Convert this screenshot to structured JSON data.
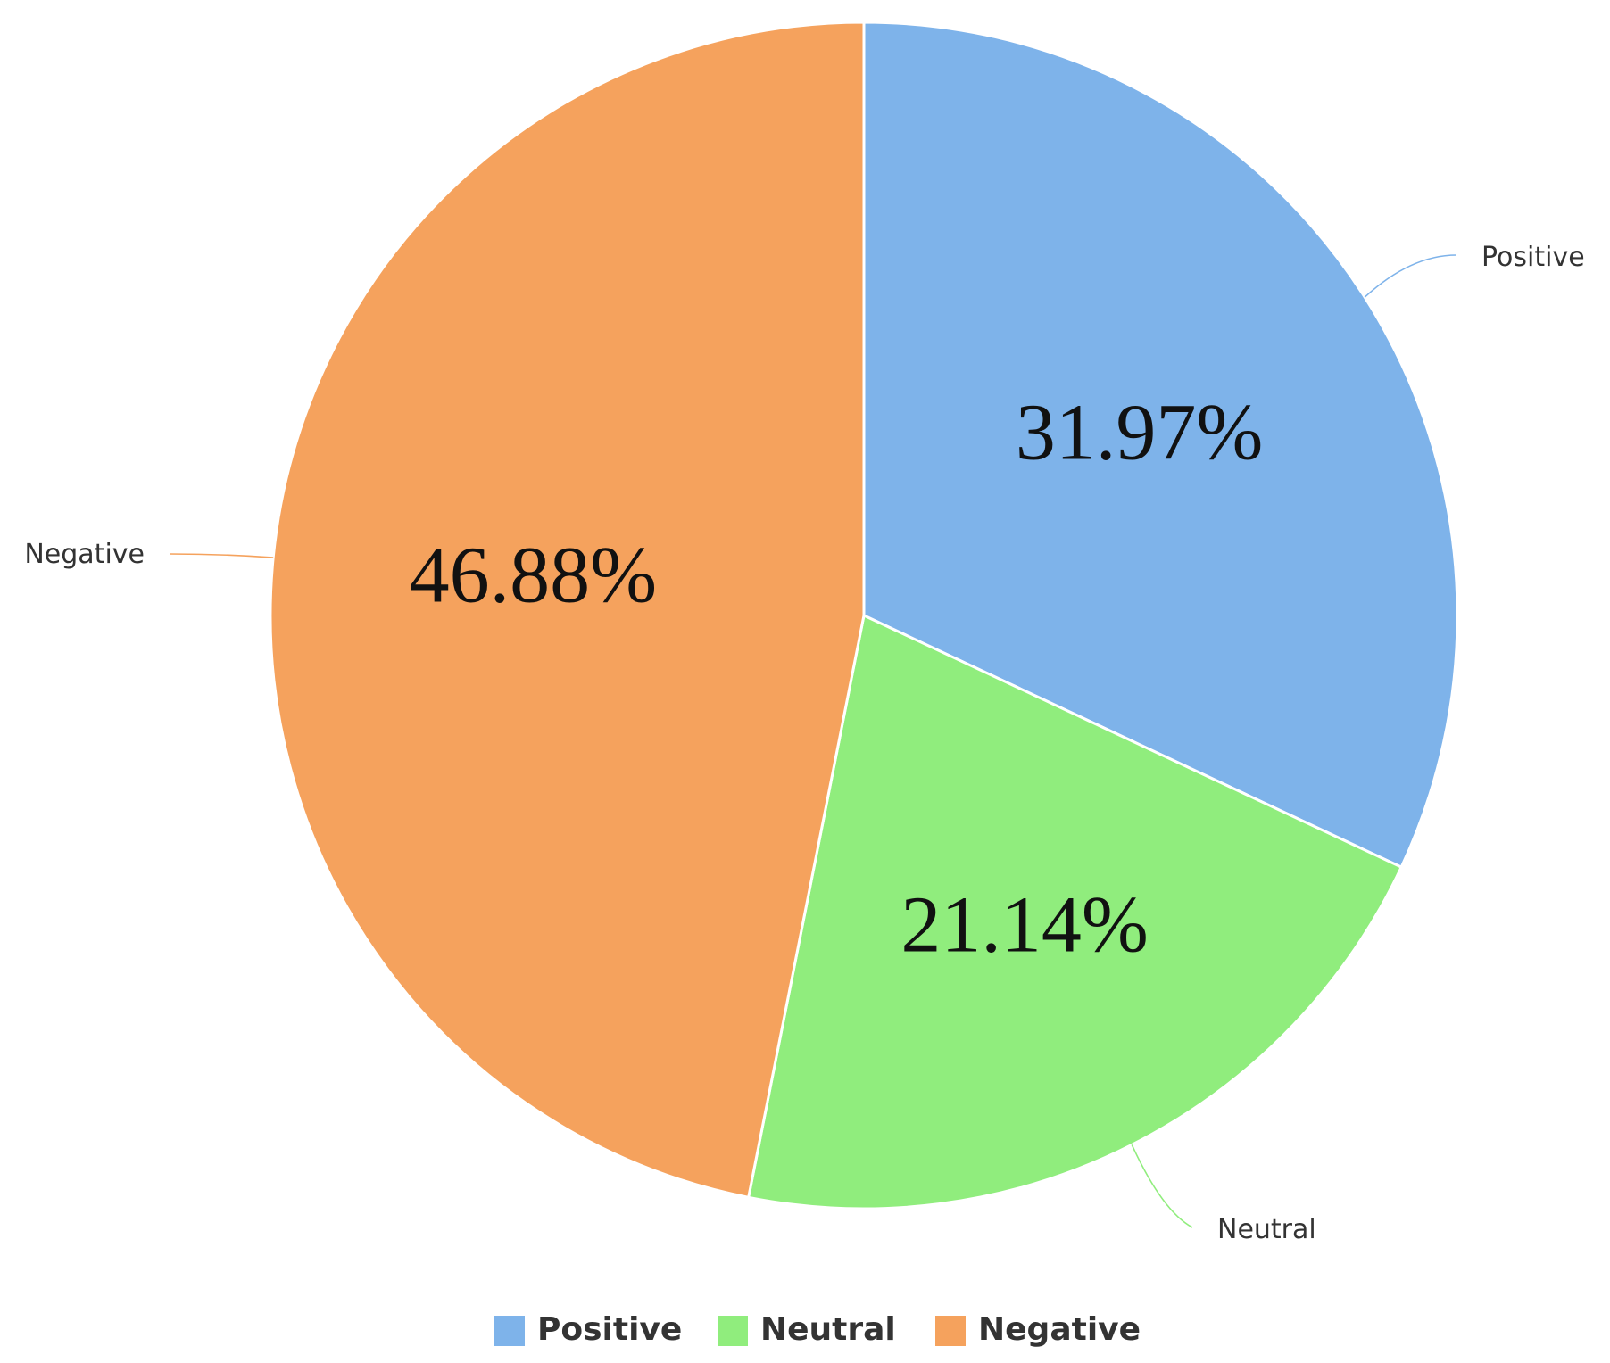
{
  "chart_data": {
    "type": "pie",
    "categories": [
      "Positive",
      "Neutral",
      "Negative"
    ],
    "values": [
      31.97,
      21.14,
      46.88
    ],
    "labels": [
      "31.97%",
      "21.14%",
      "46.88%"
    ],
    "colors": [
      "#7eb3ea",
      "#90ed7d",
      "#f5a25d"
    ],
    "start": "12 o'clock",
    "direction": "clockwise",
    "legend": {
      "position": "bottom-center",
      "entries": [
        "Positive",
        "Neutral",
        "Negative"
      ]
    }
  }
}
